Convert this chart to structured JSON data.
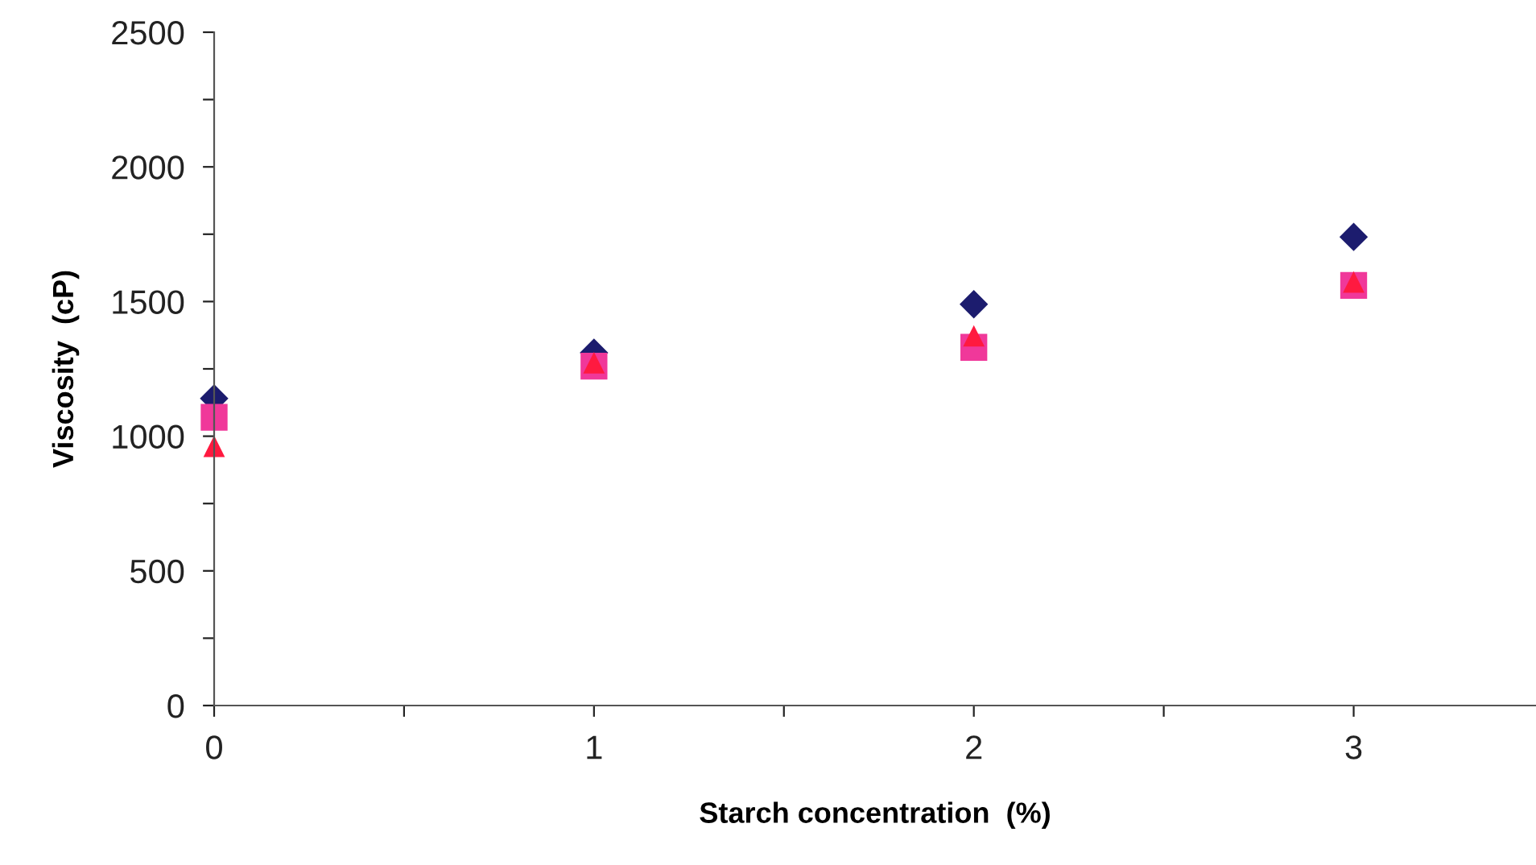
{
  "chart_data": {
    "type": "scatter",
    "xlabel": "Starch concentration  (%)",
    "ylabel": "Viscosity  (cP)",
    "x": [
      0,
      1,
      2,
      3
    ],
    "series": [
      {
        "color": "#1c1c6e",
        "marker": "diamond",
        "values": [
          1140,
          1310,
          1490,
          1740
        ]
      },
      {
        "color": "#f0389a",
        "marker": "square",
        "values": [
          1070,
          1260,
          1330,
          1560
        ]
      },
      {
        "color": "#ff1a40",
        "marker": "triangle",
        "values": [
          960,
          1270,
          1370,
          1570
        ]
      }
    ],
    "xlim": [
      0,
      3.48
    ],
    "xticks": [
      0,
      {
        "value": 0.5,
        "label": null
      },
      1,
      {
        "value": 1.5,
        "label": null
      },
      2,
      {
        "value": 2.5,
        "label": null
      },
      3
    ],
    "ylim": [
      0,
      2500
    ],
    "yticks": [
      0,
      {
        "value": 250,
        "label": null
      },
      500,
      {
        "value": 750,
        "label": null
      },
      1000,
      {
        "value": 1250,
        "label": null
      },
      1500,
      {
        "value": 1750,
        "label": null
      },
      2000,
      {
        "value": 2250,
        "label": null
      },
      2500
    ],
    "grid": false,
    "legend": false
  }
}
